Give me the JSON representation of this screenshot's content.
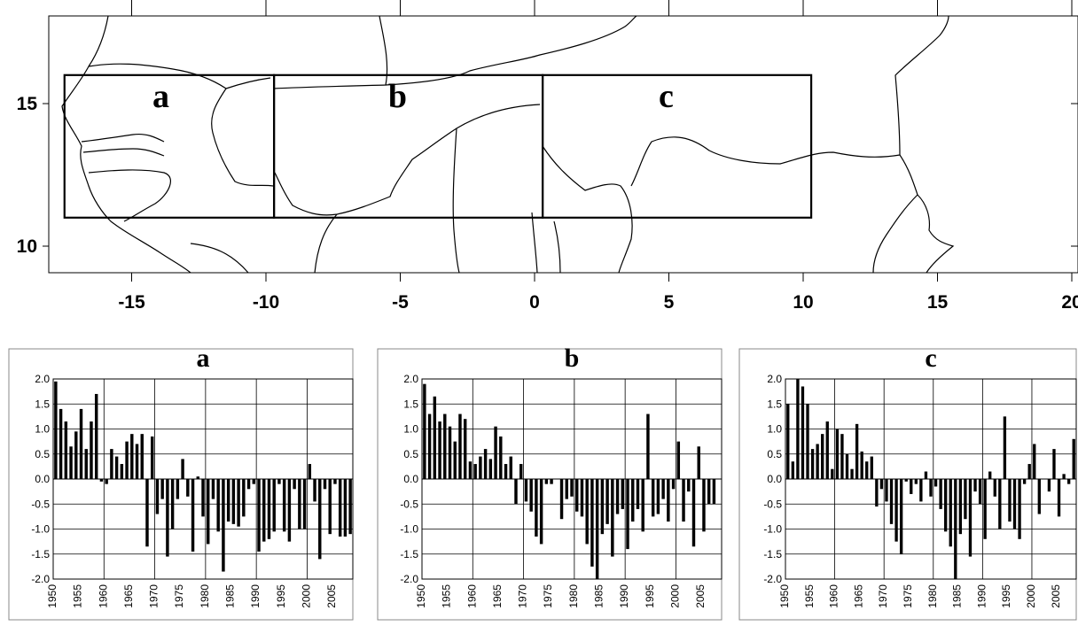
{
  "map": {
    "x_ticks": [
      "-15",
      "-10",
      "-5",
      "0",
      "5",
      "10",
      "15",
      "20"
    ],
    "y_ticks": [
      "15",
      "10"
    ],
    "x_range": [
      -18,
      20
    ],
    "y_range": [
      9,
      19
    ],
    "regions": [
      {
        "label": "a",
        "lon_min": -17.5,
        "lon_max": -9.7,
        "lat_min": 11,
        "lat_max": 16
      },
      {
        "label": "b",
        "lon_min": -9.7,
        "lon_max": 0.3,
        "lat_min": 11,
        "lat_max": 16
      },
      {
        "label": "c",
        "lon_min": 0.3,
        "lon_max": 10.3,
        "lat_min": 11,
        "lat_max": 16
      }
    ]
  },
  "chart_data": [
    {
      "type": "bar",
      "title": "a",
      "ylim": [
        -2.0,
        2.0
      ],
      "y_ticks": [
        "2.0",
        "1.5",
        "1.0",
        "0.5",
        "0.0",
        "-0.5",
        "-1.0",
        "-1.5",
        "-2.0"
      ],
      "x_ticks": [
        "1950",
        "1955",
        "1960",
        "1965",
        "1970",
        "1975",
        "1980",
        "1985",
        "1990",
        "1995",
        "2000",
        "2005"
      ],
      "grid": true,
      "years": [
        1950,
        1951,
        1952,
        1953,
        1954,
        1955,
        1956,
        1957,
        1958,
        1959,
        1960,
        1961,
        1962,
        1963,
        1964,
        1965,
        1966,
        1967,
        1968,
        1969,
        1970,
        1971,
        1972,
        1973,
        1974,
        1975,
        1976,
        1977,
        1978,
        1979,
        1980,
        1981,
        1982,
        1983,
        1984,
        1985,
        1986,
        1987,
        1988,
        1989,
        1990,
        1991,
        1992,
        1993,
        1994,
        1995,
        1996,
        1997,
        1998,
        1999,
        2000,
        2001,
        2002,
        2003,
        2004,
        2005,
        2006,
        2007,
        2008
      ],
      "values": [
        1.95,
        1.4,
        1.15,
        0.65,
        0.95,
        1.4,
        0.6,
        1.15,
        1.7,
        -0.05,
        -0.1,
        0.6,
        0.45,
        0.3,
        0.75,
        0.9,
        0.7,
        0.9,
        -1.35,
        0.85,
        -0.7,
        -0.4,
        -1.55,
        -1.0,
        -0.4,
        0.4,
        -0.35,
        -1.45,
        0.05,
        -0.75,
        -1.3,
        -0.4,
        -1.05,
        -1.85,
        -0.85,
        -0.9,
        -0.95,
        -0.75,
        -0.2,
        -0.1,
        -1.45,
        -1.25,
        -1.2,
        -1.05,
        -0.1,
        -1.05,
        -1.25,
        -0.2,
        -1.0,
        -1.0,
        0.3,
        -0.45,
        -1.6,
        -0.2,
        -1.1,
        -0.1,
        -1.15,
        -1.15,
        -1.1
      ]
    },
    {
      "type": "bar",
      "title": "b",
      "ylim": [
        -2.0,
        2.0
      ],
      "y_ticks": [
        "2.0",
        "1.5",
        "1.0",
        "0.5",
        "0.0",
        "-0.5",
        "-1.0",
        "-1.5",
        "-2.0"
      ],
      "x_ticks": [
        "1950",
        "1955",
        "1960",
        "1965",
        "1970",
        "1975",
        "1980",
        "1985",
        "1990",
        "1995",
        "2000",
        "2005"
      ],
      "grid": true,
      "years": [
        1950,
        1951,
        1952,
        1953,
        1954,
        1955,
        1956,
        1957,
        1958,
        1959,
        1960,
        1961,
        1962,
        1963,
        1964,
        1965,
        1966,
        1967,
        1968,
        1969,
        1970,
        1971,
        1972,
        1973,
        1974,
        1975,
        1976,
        1977,
        1978,
        1979,
        1980,
        1981,
        1982,
        1983,
        1984,
        1985,
        1986,
        1987,
        1988,
        1989,
        1990,
        1991,
        1992,
        1993,
        1994,
        1995,
        1996,
        1997,
        1998,
        1999,
        2000,
        2001,
        2002,
        2003,
        2004,
        2005,
        2006,
        2007
      ],
      "values": [
        1.9,
        1.3,
        1.65,
        1.15,
        1.3,
        1.05,
        0.75,
        1.3,
        1.2,
        0.35,
        0.3,
        0.45,
        0.6,
        0.4,
        1.05,
        0.85,
        0.3,
        0.45,
        -0.5,
        0.3,
        -0.45,
        -0.65,
        -1.15,
        -1.3,
        -0.1,
        -0.1,
        0.0,
        -0.8,
        -0.4,
        -0.35,
        -0.65,
        -0.75,
        -1.3,
        -1.75,
        -2.0,
        -1.1,
        -0.9,
        -1.55,
        -0.7,
        -0.6,
        -1.4,
        -0.85,
        -0.6,
        -1.05,
        1.3,
        -0.75,
        -0.7,
        -0.4,
        -0.85,
        -0.2,
        0.75,
        -0.85,
        -0.25,
        -1.35,
        0.65,
        -1.05,
        -0.5,
        -0.5
      ]
    },
    {
      "type": "bar",
      "title": "c",
      "ylim": [
        -2.0,
        2.0
      ],
      "y_ticks": [
        "2.0",
        "1.5",
        "1.0",
        "0.5",
        "0.0",
        "-0.5",
        "-1.0",
        "-1.5",
        "-2.0"
      ],
      "x_ticks": [
        "1950",
        "1955",
        "1960",
        "1965",
        "1970",
        "1975",
        "1980",
        "1985",
        "1990",
        "1995",
        "2000",
        "2005"
      ],
      "grid": true,
      "years": [
        1950,
        1951,
        1952,
        1953,
        1954,
        1955,
        1956,
        1957,
        1958,
        1959,
        1960,
        1961,
        1962,
        1963,
        1964,
        1965,
        1966,
        1967,
        1968,
        1969,
        1970,
        1971,
        1972,
        1973,
        1974,
        1975,
        1976,
        1977,
        1978,
        1979,
        1980,
        1981,
        1982,
        1983,
        1984,
        1985,
        1986,
        1987,
        1988,
        1989,
        1990,
        1991,
        1992,
        1993,
        1994,
        1995,
        1996,
        1997,
        1998,
        1999,
        2000,
        2001,
        2002,
        2003,
        2004,
        2005,
        2006,
        2007,
        2008
      ],
      "values": [
        1.5,
        0.35,
        2.1,
        1.85,
        1.5,
        0.6,
        0.7,
        0.9,
        1.15,
        0.2,
        1.0,
        0.9,
        0.5,
        0.2,
        1.1,
        0.55,
        0.35,
        0.45,
        -0.55,
        -0.2,
        -0.45,
        -0.9,
        -1.25,
        -1.5,
        -0.05,
        -0.3,
        -0.1,
        -0.45,
        0.15,
        -0.35,
        -0.15,
        -0.6,
        -1.05,
        -1.35,
        -2.1,
        -1.1,
        -0.8,
        -1.55,
        -0.25,
        -0.5,
        -1.2,
        0.15,
        -0.35,
        -1.0,
        1.25,
        -0.85,
        -1.0,
        -1.2,
        -0.1,
        0.3,
        0.7,
        -0.7,
        0.0,
        -0.25,
        0.6,
        -0.75,
        0.1,
        -0.1,
        0.8
      ]
    }
  ]
}
